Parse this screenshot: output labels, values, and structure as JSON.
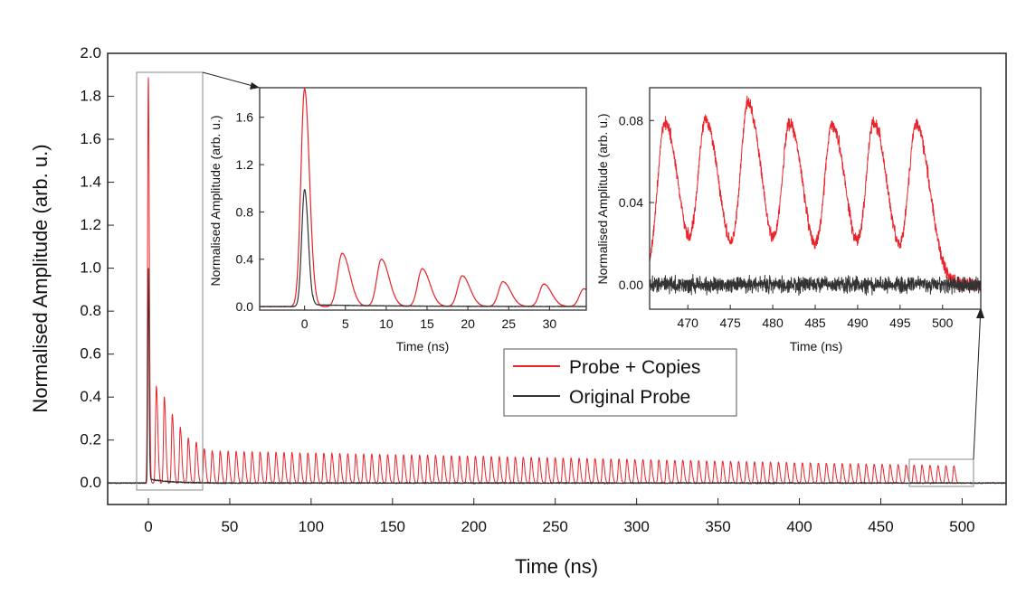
{
  "chart_data": [
    {
      "panel": "main",
      "type": "line",
      "xlabel": "Time (ns)",
      "ylabel": "Normalised Amplitude (arb. u.)",
      "xlim": [
        -25,
        527
      ],
      "ylim": [
        -0.1,
        2.0
      ],
      "xticks": [
        0,
        50,
        100,
        150,
        200,
        250,
        300,
        350,
        400,
        450,
        500
      ],
      "yticks": [
        0.0,
        0.2,
        0.4,
        0.6,
        0.8,
        1.0,
        1.2,
        1.4,
        1.6,
        1.8,
        2.0
      ],
      "grid": false,
      "legend": {
        "placement": "center",
        "entries": [
          {
            "label": "Probe + Copies",
            "color": "#e8232a"
          },
          {
            "label": "Original Probe",
            "color": "#333333"
          }
        ]
      },
      "series": [
        {
          "name": "Probe + Copies",
          "color": "#e8232a",
          "peak_spacing_ns": 4.9,
          "first_peak": {
            "x": 0,
            "y": 1.89
          },
          "copy_peaks_x": [
            4.9,
            9.8,
            14.7,
            19.6,
            24.5,
            29.4,
            34.3
          ],
          "copy_peaks_y": [
            0.45,
            0.4,
            0.32,
            0.26,
            0.21,
            0.19,
            0.16
          ],
          "plateau_level_start": 0.15,
          "plateau_level_end": 0.08,
          "last_peak_x": 497
        },
        {
          "name": "Original Probe",
          "color": "#333333",
          "peak": {
            "x": 0,
            "y": 1.0
          },
          "baseline": 0.0
        }
      ]
    },
    {
      "panel": "inset-left",
      "type": "line",
      "xlabel": "Time (ns)",
      "ylabel": "Normalised Amplitude (arb. u.)",
      "xlim": [
        -5.5,
        34.5
      ],
      "ylim": [
        -0.03,
        1.85
      ],
      "xticks": [
        0,
        5,
        10,
        15,
        20,
        25,
        30
      ],
      "yticks": [
        0.0,
        0.4,
        0.8,
        1.2,
        1.6
      ],
      "ytick_labels": [
        "0.0",
        "0.4",
        "0.8",
        "1.2",
        "1.6"
      ],
      "series": [
        {
          "name": "Probe + Copies",
          "color": "#e8232a",
          "peaks_x": [
            0,
            4.6,
            9.4,
            14.4,
            19.3,
            24.3,
            29.3,
            34.2
          ],
          "peaks_y": [
            1.84,
            0.45,
            0.4,
            0.32,
            0.26,
            0.21,
            0.19,
            0.15
          ]
        },
        {
          "name": "Original Probe",
          "color": "#333333",
          "peak": {
            "x": 0,
            "y": 0.99
          }
        }
      ]
    },
    {
      "panel": "inset-right",
      "type": "line",
      "xlabel": "Time (ns)",
      "ylabel": "Normalised Amplitude (arb. u.)",
      "xlim": [
        465.5,
        504.5
      ],
      "ylim": [
        -0.012,
        0.096
      ],
      "xticks": [
        470,
        475,
        480,
        485,
        490,
        495,
        500
      ],
      "yticks": [
        0.0,
        0.04,
        0.08
      ],
      "ytick_labels": [
        "0.00",
        "0.04",
        "0.08"
      ],
      "series": [
        {
          "name": "Probe + Copies",
          "color": "#e8232a",
          "peaks_x": [
            467.3,
            472.1,
            477.1,
            482.0,
            487.0,
            491.9,
            496.9
          ],
          "peaks_y": [
            0.079,
            0.08,
            0.088,
            0.078,
            0.078,
            0.079,
            0.078
          ]
        },
        {
          "name": "Original Probe",
          "color": "#333333",
          "baseline": 0.0
        }
      ]
    }
  ]
}
